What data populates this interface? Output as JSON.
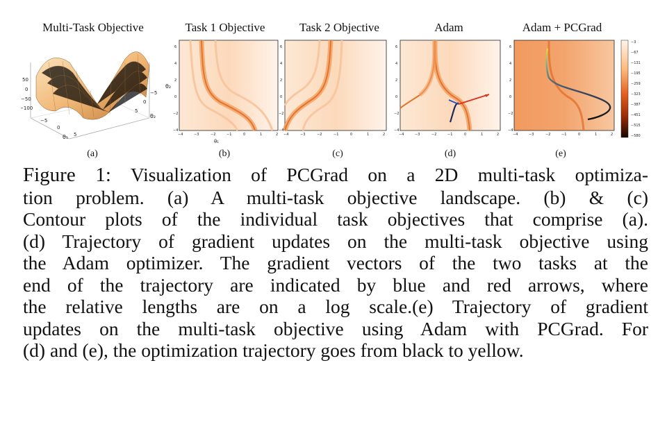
{
  "panels": [
    {
      "id": "a",
      "title": "Multi-Task Objective",
      "label": "(a)",
      "z_ticks": [
        "50",
        "0",
        "−50",
        "−100"
      ],
      "x_ticks": [
        "−5",
        "0",
        "5"
      ],
      "y_ticks": [
        "−5",
        "0",
        "5"
      ],
      "x_label": "θ₁",
      "y_label": "θ₂"
    },
    {
      "id": "b",
      "title": "Task 1 Objective",
      "label": "(b)"
    },
    {
      "id": "c",
      "title": "Task 2 Objective",
      "label": "(c)"
    },
    {
      "id": "d",
      "title": "Adam",
      "label": "(d)"
    },
    {
      "id": "e",
      "title": "Adam + PCGrad",
      "label": "(e)"
    }
  ],
  "axes": {
    "y_ticks": [
      "6",
      "4",
      "2",
      "0",
      "−2",
      "−4"
    ],
    "x_ticks": [
      "−4",
      "−3",
      "−2",
      "−1",
      "0",
      "1",
      "2"
    ],
    "x_label": "θ₁",
    "y_label": "θ₂"
  },
  "colorbar": {
    "ticks": [
      "−3",
      "−67",
      "−131",
      "−195",
      "−259",
      "−323",
      "−387",
      "−451",
      "−515",
      "−580"
    ]
  },
  "caption": {
    "figure_label": "Figure 1:",
    "lines": [
      "Visualization of PCGrad on a 2D multi-task optimiza-",
      "tion problem.  (a) A multi-task objective landscape.  (b) & (c)",
      "Contour plots of the individual task objectives that comprise (a).",
      "(d) Trajectory of gradient updates on the multi-task objective using",
      "the Adam optimizer. The gradient vectors of the two tasks at the",
      "end of the trajectory are indicated by blue and red arrows, where",
      "the relative lengths are on a log scale.(e) Trajectory of gradient",
      "updates on the multi-task objective using Adam with PCGrad. For",
      "(d) and (e), the optimization trajectory goes from black to yellow."
    ]
  }
}
